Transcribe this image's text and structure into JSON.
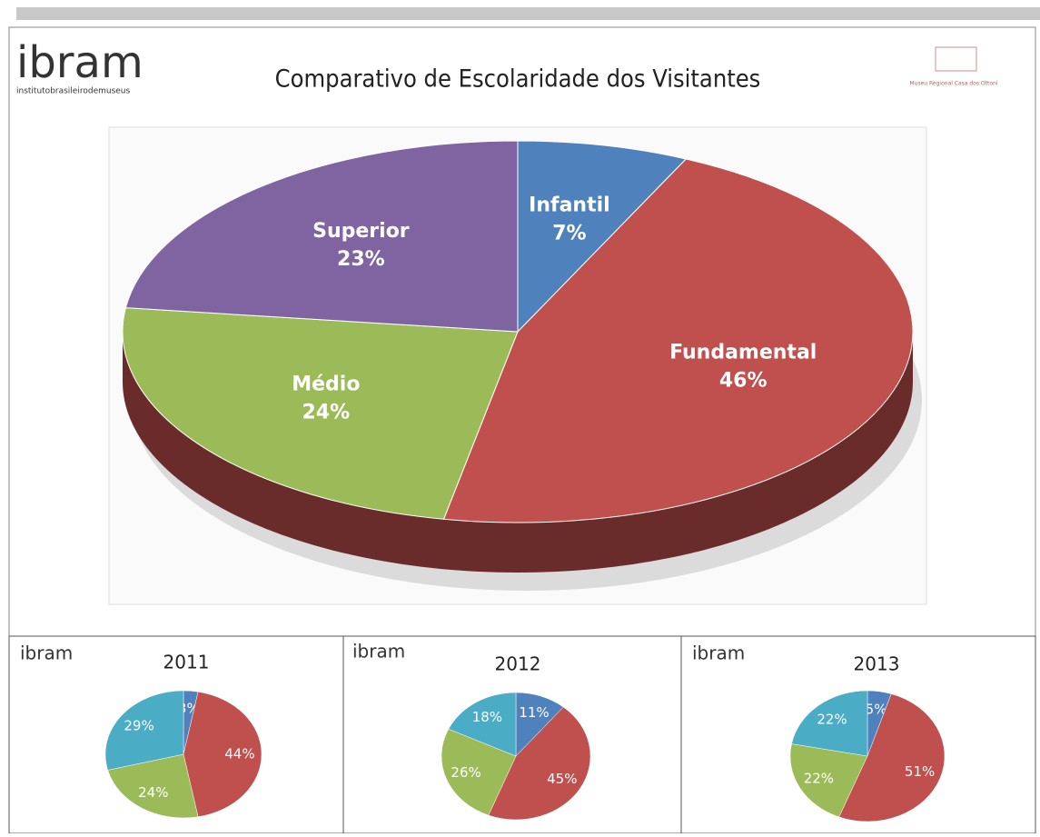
{
  "chart_data": [
    {
      "type": "pie",
      "title": "Comparativo  de Escolaridade  dos Visitantes",
      "logo": "ibram",
      "logo_subtitle": "institutobrasileirodemuseus",
      "museum": "Museu Regional Casa dos Ottoni",
      "categories": [
        "Infantil",
        "Fundamental",
        "Médio",
        "Superior"
      ],
      "values": [
        7,
        46,
        24,
        23
      ],
      "value_labels": [
        "7%",
        "46%",
        "24%",
        "23%"
      ],
      "colors": [
        "#4f81bd",
        "#c0504d",
        "#9bbb59",
        "#8064a2"
      ]
    },
    {
      "type": "pie",
      "title": "2011",
      "logo": "ibram",
      "values": [
        3,
        44,
        24,
        29
      ],
      "value_labels": [
        "3%",
        "44%",
        "24%",
        "29%"
      ],
      "colors": [
        "#4f81bd",
        "#c0504d",
        "#9bbb59",
        "#4bacc6"
      ]
    },
    {
      "type": "pie",
      "title": "2012",
      "logo": "ibram",
      "values": [
        11,
        45,
        26,
        18
      ],
      "value_labels": [
        "11%",
        "45%",
        "26%",
        "18%"
      ],
      "colors": [
        "#4f81bd",
        "#c0504d",
        "#9bbb59",
        "#4bacc6"
      ]
    },
    {
      "type": "pie",
      "title": "2013",
      "logo": "ibram",
      "values": [
        5,
        51,
        22,
        22
      ],
      "value_labels": [
        "5%",
        "51%",
        "22%",
        "22%"
      ],
      "colors": [
        "#4f81bd",
        "#c0504d",
        "#9bbb59",
        "#4bacc6"
      ]
    }
  ]
}
